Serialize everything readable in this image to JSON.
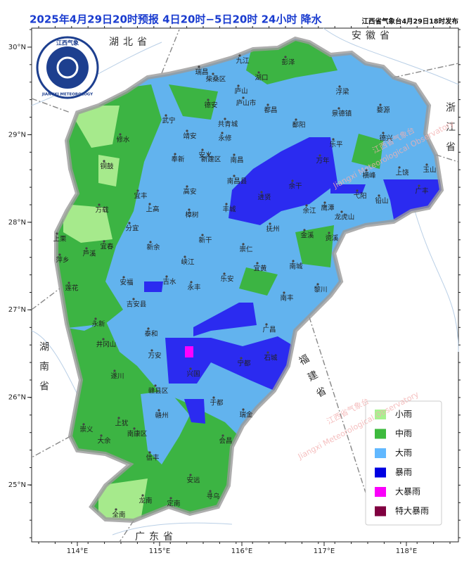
{
  "header": {
    "title": "2025年4月29日20时预报 4日20时−5日20时 24小时  降水",
    "issuer": "江西省气象台4月29日18时发布"
  },
  "logo": {
    "text_cn": "江西气象",
    "text_en": "JIANGXI METEOROLOGY"
  },
  "map": {
    "lon_ticks": [
      {
        "value": 114,
        "label": "114°E"
      },
      {
        "value": 115,
        "label": "115°E"
      },
      {
        "value": 116,
        "label": "116°E"
      },
      {
        "value": 117,
        "label": "117°E"
      },
      {
        "value": 118,
        "label": "118°E"
      }
    ],
    "lat_ticks": [
      {
        "value": 30,
        "label": "30°N"
      },
      {
        "value": 29,
        "label": "29°N"
      },
      {
        "value": 28,
        "label": "28°N"
      },
      {
        "value": 27,
        "label": "27°N"
      },
      {
        "value": 26,
        "label": "26°N"
      },
      {
        "value": 25,
        "label": "25°N"
      }
    ],
    "provinces": [
      "湖北省",
      "安徽省",
      "浙江省",
      "湖南省",
      "福建省",
      "广东省"
    ],
    "cities": [
      "九江",
      "彭泽",
      "瑞昌",
      "柴桑区",
      "湖口",
      "庐山",
      "浮梁",
      "德安",
      "庐山市",
      "都昌",
      "景德镇",
      "婺源",
      "武宁",
      "共青城",
      "鄱阳",
      "永修",
      "乐平",
      "德兴",
      "修水",
      "靖安",
      "安义",
      "新建区",
      "南昌",
      "奉新",
      "铜鼓",
      "万年",
      "横峰",
      "上饶",
      "玉山",
      "南昌县",
      "进贤",
      "余干",
      "弋阳",
      "铅山",
      "广丰",
      "宜丰",
      "高安",
      "上高",
      "丰城",
      "鹰潭",
      "余江",
      "龙虎山",
      "万载",
      "樟树",
      "抚州",
      "分宜",
      "上栗",
      "宜春",
      "新余",
      "新干",
      "金溪",
      "资溪",
      "萍乡",
      "芦溪",
      "峡江",
      "崇仁",
      "宜黄",
      "南城",
      "安福",
      "吉水",
      "乐安",
      "永丰",
      "莲花",
      "黎川",
      "南丰",
      "吉安县",
      "永新",
      "泰和",
      "广昌",
      "井冈山",
      "遂川",
      "万安",
      "兴国",
      "宁都",
      "石城",
      "赣县区",
      "赣州",
      "于都",
      "瑞金",
      "上犹",
      "南康区",
      "崇义",
      "大余",
      "信丰",
      "会昌",
      "安远",
      "龙南",
      "定南",
      "寻乌",
      "全南"
    ],
    "watermark": [
      "江西省气象台",
      "Jiangxi Meteorological Observatory"
    ]
  },
  "legend": {
    "items": [
      {
        "label": "小雨",
        "color": "#a6f28f"
      },
      {
        "label": "中雨",
        "color": "#3dba3d"
      },
      {
        "label": "大雨",
        "color": "#61b8ff"
      },
      {
        "label": "暴雨",
        "color": "#0000e1"
      },
      {
        "label": "大暴雨",
        "color": "#fa00fa"
      },
      {
        "label": "特大暴雨",
        "color": "#800040"
      }
    ]
  }
}
